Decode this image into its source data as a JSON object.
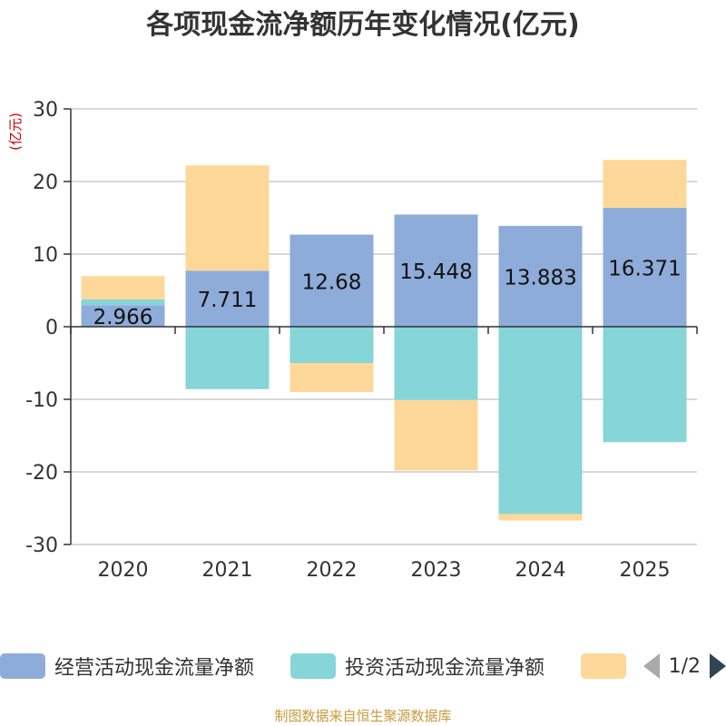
{
  "chart_data": {
    "type": "bar",
    "stacked": true,
    "title": "各项现金流净额历年变化情况(亿元)",
    "ylabel": "(亿元)",
    "ylim": [
      -30,
      30
    ],
    "yticks": [
      30,
      20,
      10,
      0,
      -10,
      -20,
      -30
    ],
    "categories": [
      "2020",
      "2021",
      "2022",
      "2023",
      "2024",
      "2025"
    ],
    "series": [
      {
        "name": "经营活动现金流量净额",
        "color": "#8eacd9",
        "values": [
          2.966,
          7.711,
          12.68,
          15.448,
          13.883,
          16.371
        ],
        "labels": [
          "2.966",
          "7.711",
          "12.68",
          "15.448",
          "13.883",
          "16.371"
        ]
      },
      {
        "name": "投资活动现金流量净额",
        "color": "#86d5d8",
        "values": [
          0.8,
          -8.6,
          -5.0,
          -10.1,
          -25.8,
          -15.9
        ]
      },
      {
        "name": "",
        "color": "#fdd899",
        "values": [
          3.2,
          14.5,
          -4.0,
          -9.7,
          -0.9,
          6.6
        ]
      }
    ]
  },
  "legend": {
    "items": [
      {
        "label": "经营活动现金流量净额",
        "color": "#8eacd9"
      },
      {
        "label": "投资活动现金流量净额",
        "color": "#86d5d8"
      },
      {
        "label": "",
        "color": "#fdd899"
      }
    ],
    "page": "1/2"
  },
  "source": "制图数据来自恒生聚源数据库"
}
